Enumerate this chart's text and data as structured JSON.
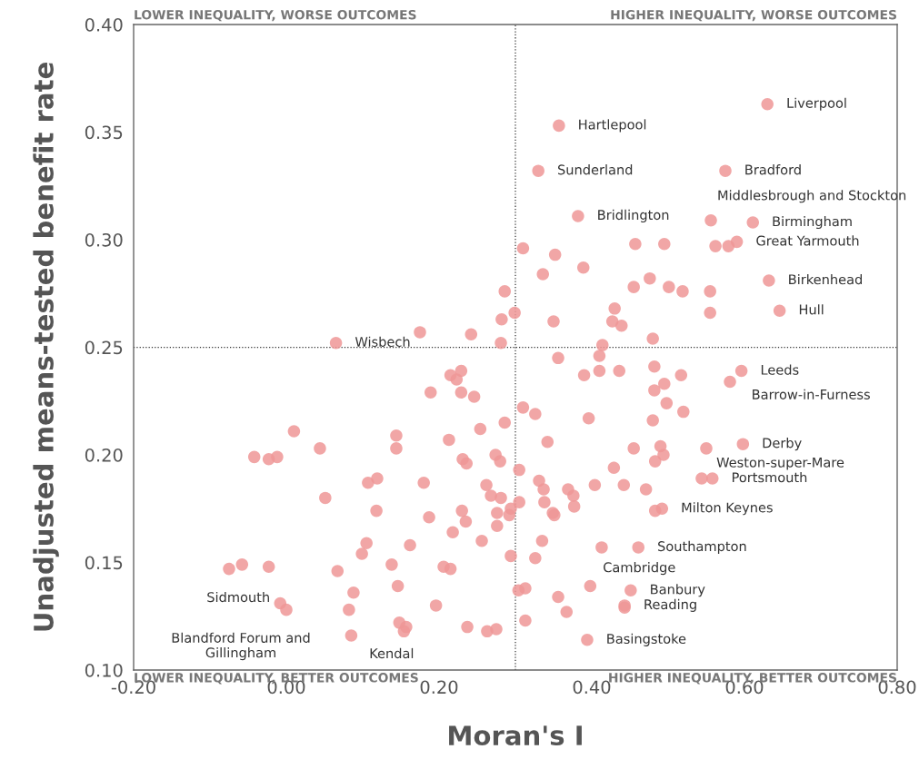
{
  "chart_data": {
    "type": "scatter",
    "xlabel": "Moran's I",
    "ylabel": "Unadjusted means-tested benefit rate",
    "xlim": [
      -0.2,
      0.8
    ],
    "ylim": [
      0.1,
      0.4
    ],
    "xticks": [
      {
        "value": -0.2,
        "label": "-0.20"
      },
      {
        "value": 0.0,
        "label": "0.00"
      },
      {
        "value": 0.2,
        "label": "0.20"
      },
      {
        "value": 0.4,
        "label": "0.40"
      },
      {
        "value": 0.6,
        "label": "0.60"
      },
      {
        "value": 0.8,
        "label": "0.80"
      }
    ],
    "yticks": [
      {
        "value": 0.1,
        "label": "0.10"
      },
      {
        "value": 0.15,
        "label": "0.15"
      },
      {
        "value": 0.2,
        "label": "0.20"
      },
      {
        "value": 0.25,
        "label": "0.25"
      },
      {
        "value": 0.3,
        "label": "0.30"
      },
      {
        "value": 0.35,
        "label": "0.35"
      },
      {
        "value": 0.4,
        "label": "0.40"
      }
    ],
    "grid": false,
    "marker": "circle",
    "ref_lines": [
      {
        "axis": "x",
        "value": 0.3,
        "line_style": "dotted",
        "color": "#333333"
      },
      {
        "axis": "y",
        "value": 0.25,
        "line_style": "dotted",
        "color": "#333333"
      }
    ],
    "series": [
      {
        "color": "#ee9696",
        "x": [
          0.63,
          0.357,
          0.33,
          0.575,
          0.382,
          0.556,
          0.611,
          0.59,
          0.632,
          0.646,
          0.065,
          0.596,
          0.581,
          0.598,
          0.55,
          0.558,
          0.544,
          0.492,
          0.483,
          0.461,
          0.398,
          0.451,
          0.443,
          0.443,
          0.394,
          -0.008,
          0.0,
          0.085,
          0.31,
          0.352,
          0.457,
          0.495,
          0.562,
          0.579,
          0.389,
          0.336,
          0.476,
          0.455,
          0.501,
          0.519,
          0.555,
          0.286,
          0.43,
          0.555,
          0.299,
          0.282,
          0.35,
          0.427,
          0.439,
          0.175,
          0.242,
          0.48,
          0.281,
          0.414,
          0.356,
          0.41,
          0.482,
          0.39,
          0.41,
          0.436,
          0.517,
          0.495,
          0.482,
          0.498,
          0.52,
          0.31,
          0.326,
          0.396,
          0.48,
          0.229,
          0.215,
          0.223,
          0.189,
          0.229,
          0.246,
          0.286,
          0.01,
          0.254,
          0.144,
          0.213,
          0.144,
          -0.042,
          -0.023,
          -0.012,
          0.044,
          0.231,
          0.236,
          0.274,
          0.28,
          0.342,
          0.455,
          0.49,
          0.494,
          0.483,
          0.429,
          0.305,
          0.107,
          0.119,
          0.18,
          0.262,
          0.268,
          0.281,
          0.331,
          0.337,
          0.369,
          0.376,
          0.404,
          0.442,
          0.471,
          0.051,
          0.118,
          0.187,
          0.23,
          0.235,
          0.276,
          0.294,
          0.292,
          0.305,
          0.338,
          0.349,
          0.351,
          0.377,
          0.276,
          0.218,
          0.256,
          0.162,
          0.105,
          0.099,
          0.335,
          0.413,
          0.294,
          0.326,
          0.138,
          0.206,
          0.215,
          -0.075,
          -0.058,
          -0.023,
          0.067,
          0.088,
          0.146,
          0.082,
          0.196,
          0.148,
          0.157,
          0.154,
          0.237,
          0.263,
          0.275,
          0.304,
          0.313,
          0.356,
          0.367,
          0.313
        ],
        "values": [
          0.363,
          0.353,
          0.332,
          0.332,
          0.311,
          0.309,
          0.308,
          0.299,
          0.281,
          0.267,
          0.252,
          0.239,
          0.234,
          0.205,
          0.203,
          0.189,
          0.189,
          0.175,
          0.174,
          0.157,
          0.139,
          0.137,
          0.13,
          0.129,
          0.114,
          0.131,
          0.128,
          0.116,
          0.296,
          0.293,
          0.298,
          0.298,
          0.297,
          0.297,
          0.287,
          0.284,
          0.282,
          0.278,
          0.278,
          0.276,
          0.276,
          0.276,
          0.268,
          0.266,
          0.266,
          0.263,
          0.262,
          0.262,
          0.26,
          0.257,
          0.256,
          0.254,
          0.252,
          0.251,
          0.245,
          0.246,
          0.241,
          0.237,
          0.239,
          0.239,
          0.237,
          0.233,
          0.23,
          0.224,
          0.22,
          0.222,
          0.219,
          0.217,
          0.216,
          0.239,
          0.237,
          0.235,
          0.229,
          0.229,
          0.227,
          0.215,
          0.211,
          0.212,
          0.209,
          0.207,
          0.203,
          0.199,
          0.198,
          0.199,
          0.203,
          0.198,
          0.196,
          0.2,
          0.197,
          0.206,
          0.203,
          0.204,
          0.2,
          0.197,
          0.194,
          0.193,
          0.187,
          0.189,
          0.187,
          0.186,
          0.181,
          0.18,
          0.188,
          0.184,
          0.184,
          0.181,
          0.186,
          0.186,
          0.184,
          0.18,
          0.174,
          0.171,
          0.174,
          0.169,
          0.173,
          0.175,
          0.172,
          0.178,
          0.178,
          0.173,
          0.172,
          0.176,
          0.167,
          0.164,
          0.16,
          0.158,
          0.159,
          0.154,
          0.16,
          0.157,
          0.153,
          0.152,
          0.149,
          0.148,
          0.147,
          0.147,
          0.149,
          0.148,
          0.146,
          0.136,
          0.139,
          0.128,
          0.13,
          0.122,
          0.12,
          0.118,
          0.12,
          0.118,
          0.119,
          0.137,
          0.138,
          0.134,
          0.127,
          0.123
        ]
      }
    ],
    "annotations": [
      "LOWER INEQUALITY, WORSE OUTCOMES",
      "HIGHER INEQUALITY, WORSE OUTCOMES",
      "LOWER INEQUALITY, BETTER OUTCOMES",
      "HIGHER INEQUALITY, BETTER OUTCOMES",
      {
        "text": "Liverpool",
        "x": 0.63,
        "y": 0.363
      },
      {
        "text": "Hartlepool",
        "x": 0.357,
        "y": 0.353
      },
      {
        "text": "Sunderland",
        "x": 0.33,
        "y": 0.332
      },
      {
        "text": "Bradford",
        "x": 0.575,
        "y": 0.332
      },
      {
        "text": "Bridlington",
        "x": 0.382,
        "y": 0.311
      },
      {
        "text": "Middlesbrough and Stockton",
        "x": 0.556,
        "y": 0.309
      },
      {
        "text": "Birmingham",
        "x": 0.611,
        "y": 0.308
      },
      {
        "text": "Great Yarmouth",
        "x": 0.59,
        "y": 0.299
      },
      {
        "text": "Birkenhead",
        "x": 0.632,
        "y": 0.281
      },
      {
        "text": "Hull",
        "x": 0.646,
        "y": 0.267
      },
      {
        "text": "Wisbech",
        "x": 0.065,
        "y": 0.252
      },
      {
        "text": "Leeds",
        "x": 0.596,
        "y": 0.239
      },
      {
        "text": "Barrow-in-Furness",
        "x": 0.581,
        "y": 0.234
      },
      {
        "text": "Derby",
        "x": 0.598,
        "y": 0.205
      },
      {
        "text": "Weston-super-Mare",
        "x": 0.55,
        "y": 0.203
      },
      {
        "text": "Portsmouth",
        "x": 0.558,
        "y": 0.189
      },
      {
        "text": "Milton Keynes",
        "x": 0.492,
        "y": 0.175
      },
      {
        "text": "Southampton",
        "x": 0.461,
        "y": 0.157
      },
      {
        "text": "Cambridge",
        "x": 0.398,
        "y": 0.139
      },
      {
        "text": "Banbury",
        "x": 0.451,
        "y": 0.137
      },
      {
        "text": "Reading",
        "x": 0.443,
        "y": 0.13
      },
      {
        "text": "Basingstoke",
        "x": 0.394,
        "y": 0.114
      },
      {
        "text": "Sidmouth",
        "x": -0.008,
        "y": 0.131
      },
      {
        "text": "Blandford Forum and\nGillingham",
        "x": 0.0,
        "y": 0.128
      },
      {
        "text": "Kendal",
        "x": 0.085,
        "y": 0.116
      }
    ]
  }
}
